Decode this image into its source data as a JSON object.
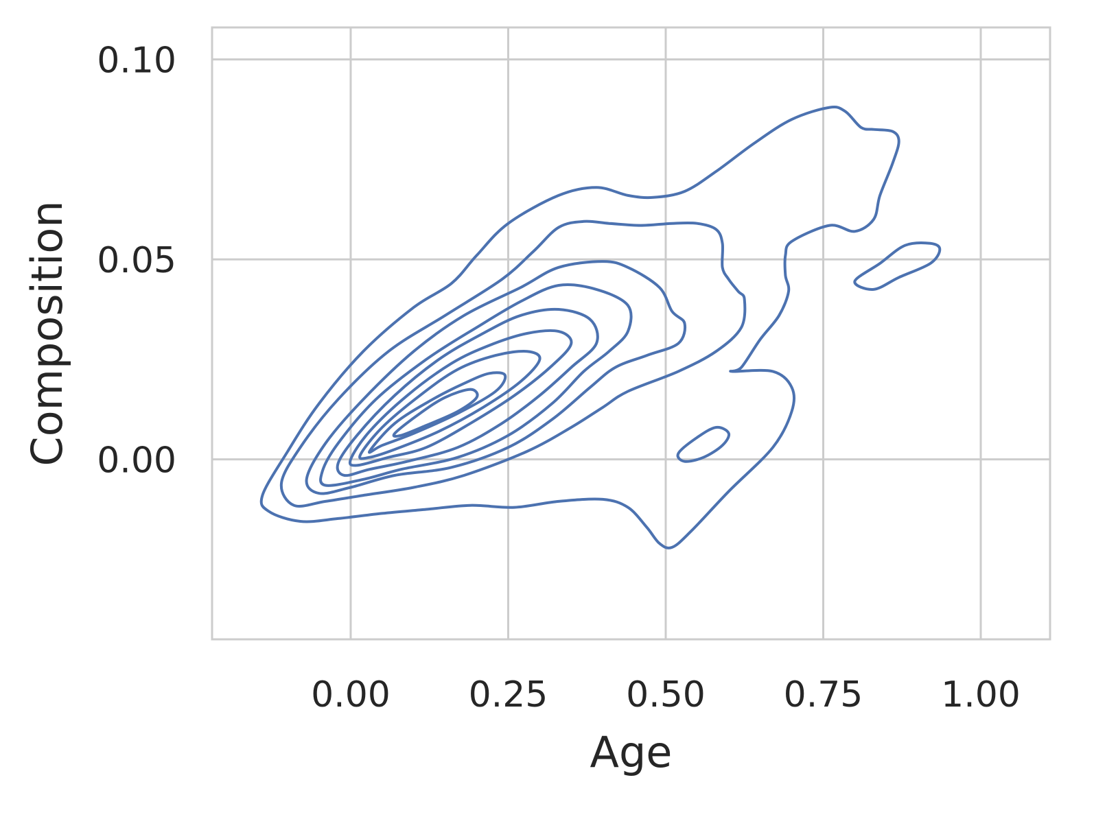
{
  "chart_data": {
    "type": "kde-contour",
    "title": "",
    "xlabel": "Age",
    "ylabel": "Composition",
    "xlim": [
      -0.22,
      1.11
    ],
    "ylim": [
      -0.045,
      0.108
    ],
    "x_ticks": [
      0.0,
      0.25,
      0.5,
      0.75,
      1.0
    ],
    "x_tick_labels": [
      "0.00",
      "0.25",
      "0.50",
      "0.75",
      "1.00"
    ],
    "y_ticks": [
      0.0,
      0.05,
      0.1
    ],
    "y_tick_labels": [
      "0.00",
      "0.05",
      "0.10"
    ],
    "grid": true,
    "line_color": "#4c72b0",
    "grid_color": "#cccccc",
    "contours": [
      {
        "level": 1,
        "points": [
          [
            -0.14,
            -0.009
          ],
          [
            -0.1,
            0.002
          ],
          [
            -0.05,
            0.014
          ],
          [
            0.02,
            0.027
          ],
          [
            0.1,
            0.038
          ],
          [
            0.16,
            0.044
          ],
          [
            0.2,
            0.051
          ],
          [
            0.25,
            0.059
          ],
          [
            0.33,
            0.066
          ],
          [
            0.39,
            0.068
          ],
          [
            0.44,
            0.066
          ],
          [
            0.48,
            0.0655
          ],
          [
            0.53,
            0.067
          ],
          [
            0.58,
            0.072
          ],
          [
            0.64,
            0.079
          ],
          [
            0.7,
            0.085
          ],
          [
            0.76,
            0.088
          ],
          [
            0.785,
            0.087
          ],
          [
            0.81,
            0.083
          ],
          [
            0.83,
            0.0825
          ],
          [
            0.86,
            0.082
          ],
          [
            0.87,
            0.0795
          ],
          [
            0.86,
            0.074
          ],
          [
            0.84,
            0.066
          ],
          [
            0.83,
            0.06
          ],
          [
            0.8,
            0.057
          ],
          [
            0.76,
            0.0585
          ],
          [
            0.7,
            0.0545
          ],
          [
            0.69,
            0.051
          ],
          [
            0.69,
            0.046
          ],
          [
            0.695,
            0.042
          ],
          [
            0.68,
            0.036
          ],
          [
            0.65,
            0.03
          ],
          [
            0.62,
            0.023
          ],
          [
            0.605,
            0.022
          ],
          [
            0.67,
            0.022
          ],
          [
            0.7,
            0.018
          ],
          [
            0.7,
            0.012
          ],
          [
            0.67,
            0.003
          ],
          [
            0.6,
            -0.008
          ],
          [
            0.54,
            -0.018
          ],
          [
            0.51,
            -0.022
          ],
          [
            0.49,
            -0.021
          ],
          [
            0.47,
            -0.017
          ],
          [
            0.44,
            -0.012
          ],
          [
            0.4,
            -0.01
          ],
          [
            0.33,
            -0.0105
          ],
          [
            0.26,
            -0.012
          ],
          [
            0.19,
            -0.0115
          ],
          [
            0.12,
            -0.0125
          ],
          [
            0.05,
            -0.0135
          ],
          [
            -0.02,
            -0.0148
          ],
          [
            -0.08,
            -0.0155
          ],
          [
            -0.13,
            -0.013
          ],
          [
            -0.14,
            -0.009
          ]
        ]
      },
      {
        "level": 2,
        "points": [
          [
            -0.11,
            -0.006
          ],
          [
            -0.08,
            0.003
          ],
          [
            -0.02,
            0.015
          ],
          [
            0.06,
            0.027
          ],
          [
            0.15,
            0.036
          ],
          [
            0.24,
            0.045
          ],
          [
            0.29,
            0.052
          ],
          [
            0.33,
            0.058
          ],
          [
            0.37,
            0.0595
          ],
          [
            0.41,
            0.059
          ],
          [
            0.46,
            0.0585
          ],
          [
            0.51,
            0.059
          ],
          [
            0.55,
            0.059
          ],
          [
            0.58,
            0.0575
          ],
          [
            0.59,
            0.054
          ],
          [
            0.59,
            0.048
          ],
          [
            0.6,
            0.045
          ],
          [
            0.615,
            0.042
          ],
          [
            0.625,
            0.04
          ],
          [
            0.62,
            0.033
          ],
          [
            0.58,
            0.027
          ],
          [
            0.52,
            0.022
          ],
          [
            0.44,
            0.017
          ],
          [
            0.4,
            0.013
          ],
          [
            0.35,
            0.008
          ],
          [
            0.28,
            0.002
          ],
          [
            0.18,
            -0.004
          ],
          [
            0.1,
            -0.007
          ],
          [
            0.02,
            -0.009
          ],
          [
            -0.04,
            -0.0105
          ],
          [
            -0.09,
            -0.0115
          ],
          [
            -0.11,
            -0.006
          ]
        ]
      },
      {
        "level": 3,
        "points": [
          [
            -0.07,
            -0.005
          ],
          [
            -0.04,
            0.004
          ],
          [
            0.02,
            0.015
          ],
          [
            0.1,
            0.027
          ],
          [
            0.18,
            0.036
          ],
          [
            0.27,
            0.043
          ],
          [
            0.33,
            0.048
          ],
          [
            0.4,
            0.0495
          ],
          [
            0.44,
            0.048
          ],
          [
            0.49,
            0.043
          ],
          [
            0.51,
            0.037
          ],
          [
            0.53,
            0.034
          ],
          [
            0.52,
            0.029
          ],
          [
            0.47,
            0.026
          ],
          [
            0.42,
            0.023
          ],
          [
            0.38,
            0.018
          ],
          [
            0.32,
            0.01
          ],
          [
            0.25,
            0.003
          ],
          [
            0.16,
            -0.002
          ],
          [
            0.07,
            -0.004
          ],
          [
            0.0,
            -0.007
          ],
          [
            -0.05,
            -0.0085
          ],
          [
            -0.07,
            -0.005
          ]
        ]
      },
      {
        "level": 4,
        "points": [
          [
            -0.045,
            -0.003
          ],
          [
            -0.02,
            0.004
          ],
          [
            0.04,
            0.015
          ],
          [
            0.12,
            0.025
          ],
          [
            0.2,
            0.033
          ],
          [
            0.27,
            0.0395
          ],
          [
            0.33,
            0.0435
          ],
          [
            0.39,
            0.0425
          ],
          [
            0.44,
            0.0385
          ],
          [
            0.44,
            0.032
          ],
          [
            0.41,
            0.027
          ],
          [
            0.37,
            0.022
          ],
          [
            0.32,
            0.014
          ],
          [
            0.25,
            0.006
          ],
          [
            0.17,
            0.0005
          ],
          [
            0.08,
            -0.0025
          ],
          [
            0.02,
            -0.005
          ],
          [
            -0.04,
            -0.0065
          ],
          [
            -0.045,
            -0.003
          ]
        ]
      },
      {
        "level": 5,
        "points": [
          [
            -0.02,
            -0.001
          ],
          [
            0.01,
            0.006
          ],
          [
            0.07,
            0.016
          ],
          [
            0.14,
            0.025
          ],
          [
            0.21,
            0.0315
          ],
          [
            0.27,
            0.036
          ],
          [
            0.33,
            0.0375
          ],
          [
            0.38,
            0.035
          ],
          [
            0.39,
            0.029
          ],
          [
            0.35,
            0.023
          ],
          [
            0.3,
            0.016
          ],
          [
            0.24,
            0.009
          ],
          [
            0.17,
            0.003
          ],
          [
            0.09,
            -0.0005
          ],
          [
            0.03,
            -0.0025
          ],
          [
            -0.01,
            -0.004
          ],
          [
            -0.02,
            -0.001
          ]
        ]
      },
      {
        "level": 6,
        "points": [
          [
            0.0,
            0.0
          ],
          [
            0.03,
            0.007
          ],
          [
            0.09,
            0.016
          ],
          [
            0.16,
            0.024
          ],
          [
            0.22,
            0.0285
          ],
          [
            0.28,
            0.0315
          ],
          [
            0.33,
            0.032
          ],
          [
            0.35,
            0.029
          ],
          [
            0.32,
            0.0235
          ],
          [
            0.26,
            0.016
          ],
          [
            0.19,
            0.009
          ],
          [
            0.12,
            0.003
          ],
          [
            0.06,
            0.0005
          ],
          [
            0.01,
            -0.0015
          ],
          [
            0.0,
            0.0
          ]
        ]
      },
      {
        "level": 7,
        "points": [
          [
            0.015,
            0.001
          ],
          [
            0.05,
            0.008
          ],
          [
            0.11,
            0.016
          ],
          [
            0.17,
            0.0225
          ],
          [
            0.23,
            0.026
          ],
          [
            0.28,
            0.027
          ],
          [
            0.3,
            0.025
          ],
          [
            0.27,
            0.0195
          ],
          [
            0.21,
            0.013
          ],
          [
            0.14,
            0.007
          ],
          [
            0.07,
            0.0025
          ],
          [
            0.03,
            0.0005
          ],
          [
            0.015,
            0.001
          ]
        ]
      },
      {
        "level": 8,
        "points": [
          [
            0.03,
            0.002
          ],
          [
            0.07,
            0.009
          ],
          [
            0.13,
            0.015
          ],
          [
            0.18,
            0.019
          ],
          [
            0.22,
            0.0215
          ],
          [
            0.245,
            0.021
          ],
          [
            0.23,
            0.017
          ],
          [
            0.17,
            0.0115
          ],
          [
            0.1,
            0.0065
          ],
          [
            0.05,
            0.0035
          ],
          [
            0.03,
            0.002
          ]
        ]
      },
      {
        "level": 9,
        "points": [
          [
            0.07,
            0.0065
          ],
          [
            0.11,
            0.0115
          ],
          [
            0.15,
            0.0155
          ],
          [
            0.19,
            0.0175
          ],
          [
            0.2,
            0.0155
          ],
          [
            0.17,
            0.012
          ],
          [
            0.12,
            0.0085
          ],
          [
            0.08,
            0.006
          ],
          [
            0.07,
            0.0065
          ]
        ]
      },
      {
        "level": "island-1",
        "points": [
          [
            0.8,
            0.0445
          ],
          [
            0.84,
            0.049
          ],
          [
            0.88,
            0.0535
          ],
          [
            0.92,
            0.054
          ],
          [
            0.935,
            0.0525
          ],
          [
            0.92,
            0.049
          ],
          [
            0.87,
            0.0455
          ],
          [
            0.83,
            0.0425
          ],
          [
            0.8,
            0.0445
          ]
        ]
      },
      {
        "level": "island-2",
        "points": [
          [
            0.52,
            0.0015
          ],
          [
            0.55,
            0.0055
          ],
          [
            0.58,
            0.008
          ],
          [
            0.6,
            0.0065
          ],
          [
            0.59,
            0.0035
          ],
          [
            0.56,
            0.0005
          ],
          [
            0.53,
            -0.0005
          ],
          [
            0.52,
            0.0015
          ]
        ]
      }
    ]
  }
}
